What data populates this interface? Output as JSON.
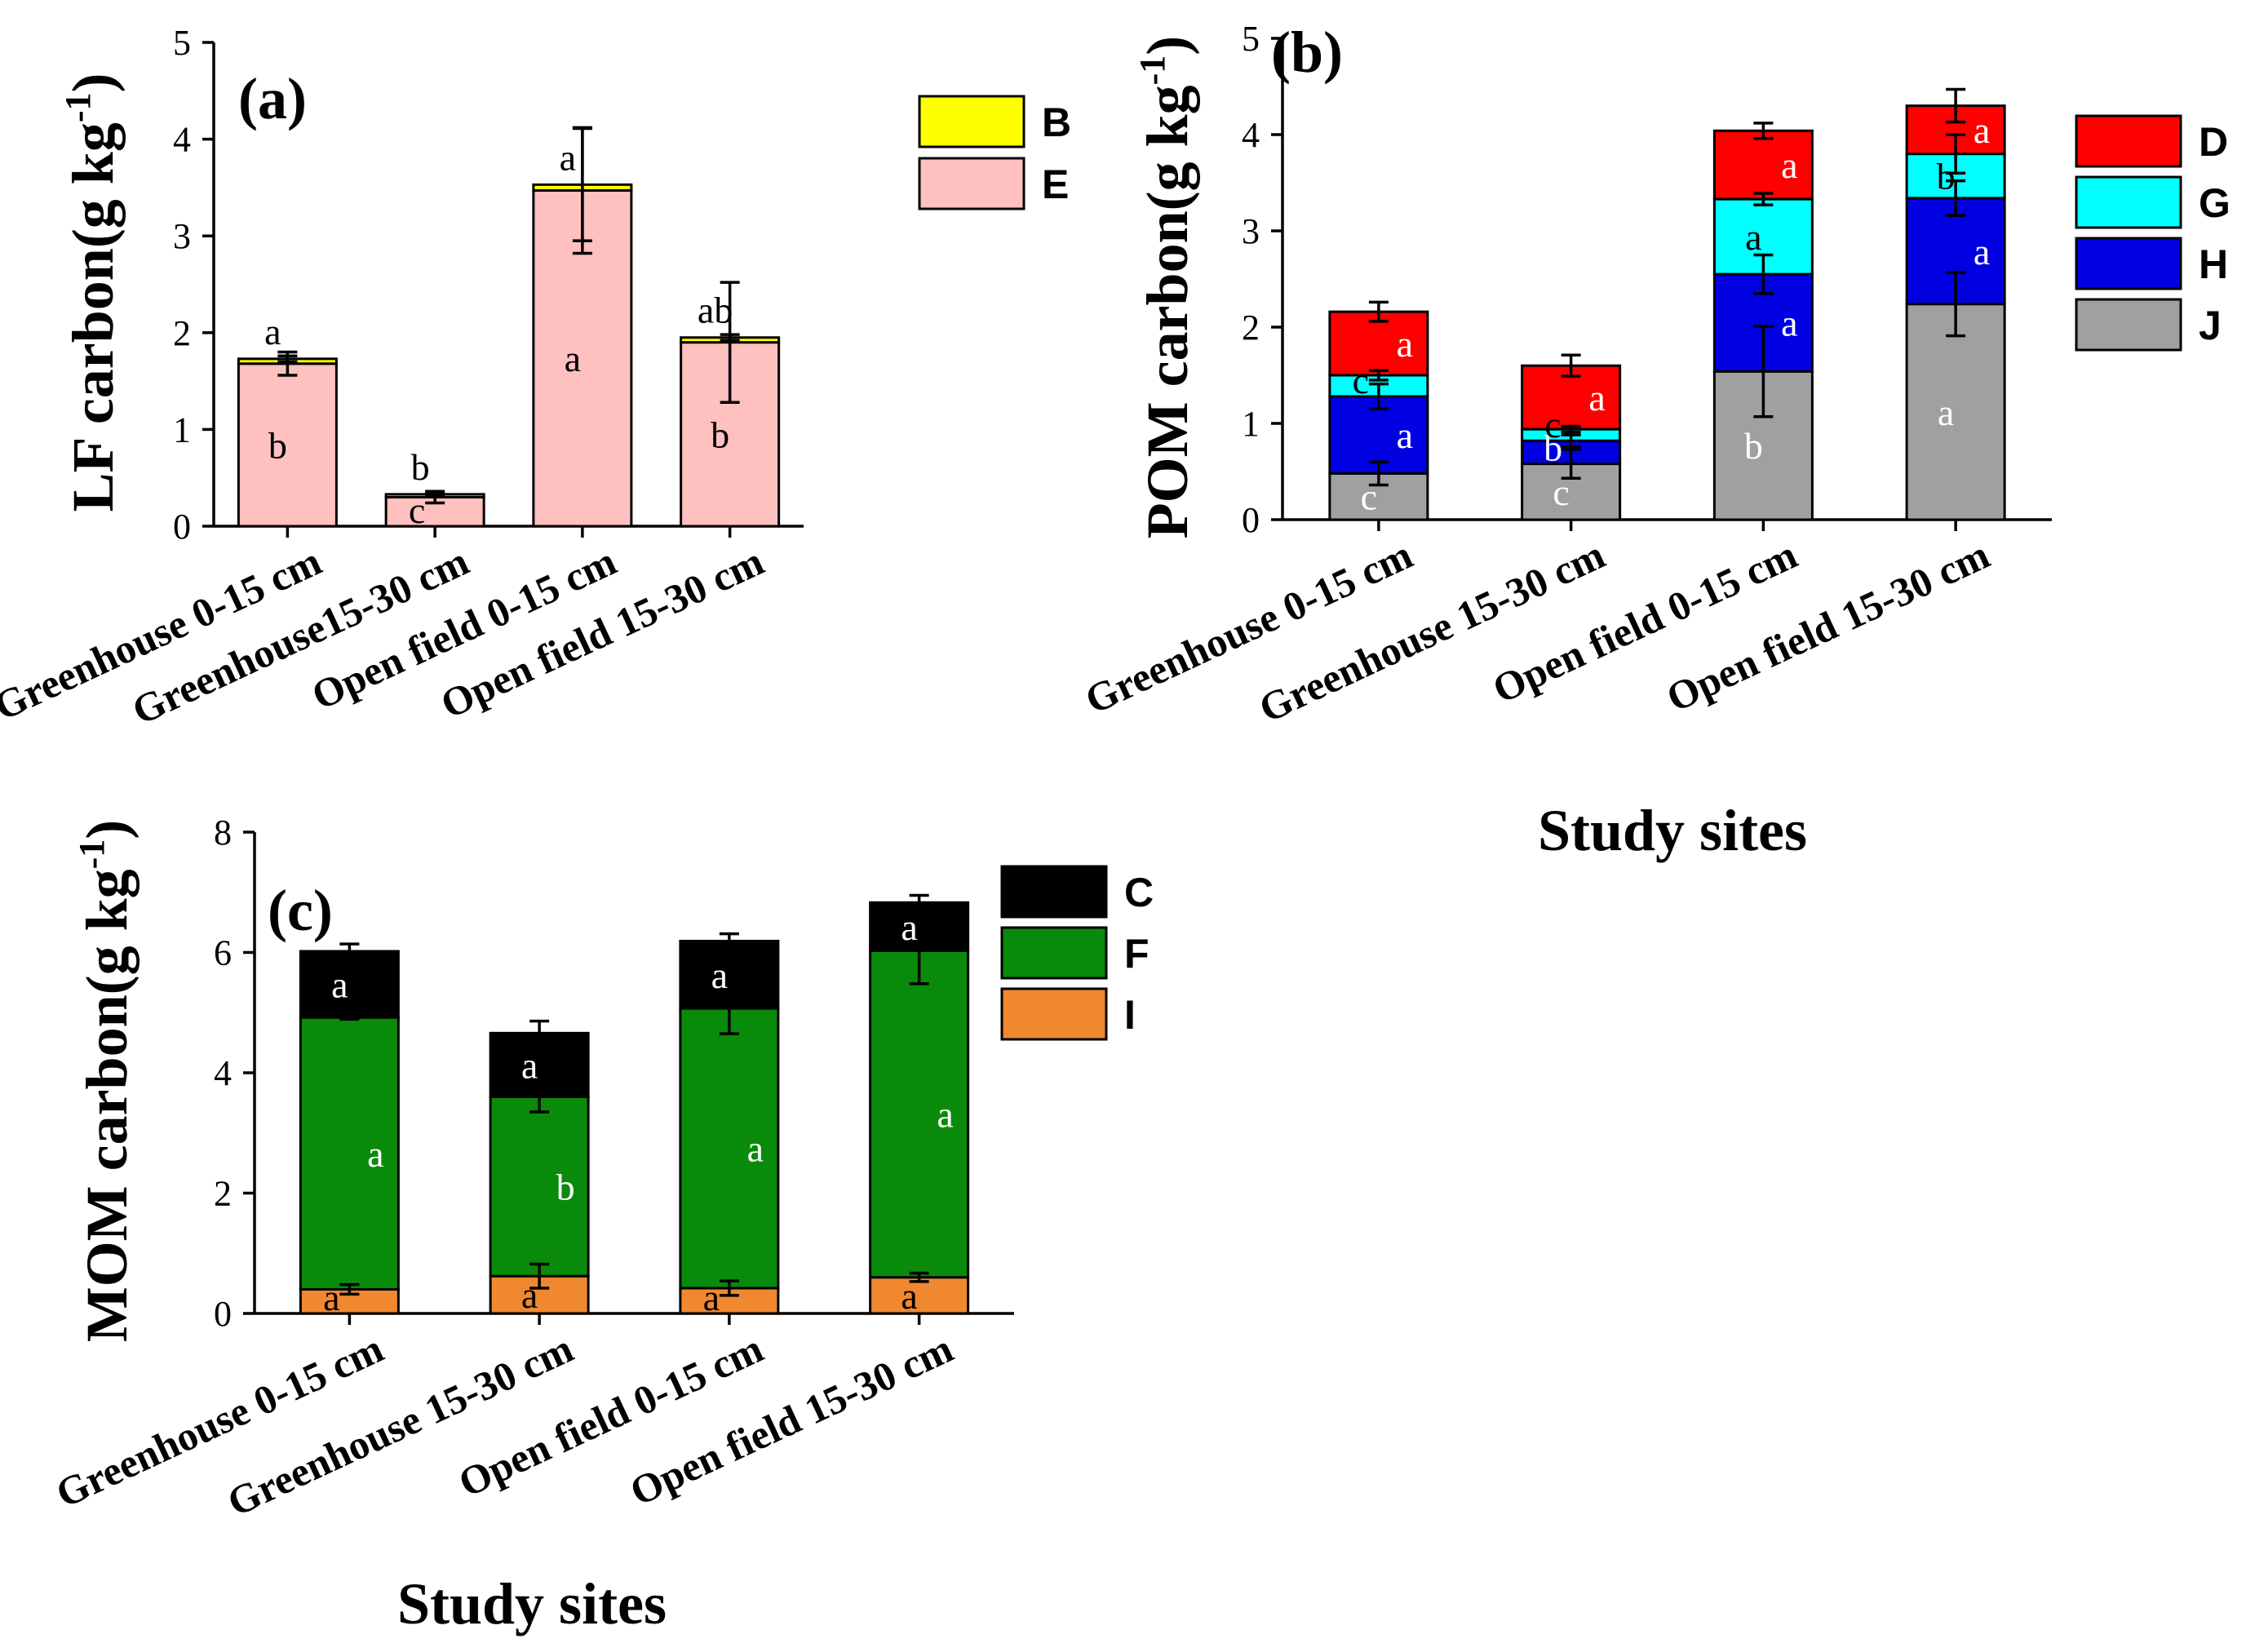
{
  "chart_data": [
    {
      "id": "a",
      "type": "bar",
      "stacked": true,
      "panel_label": "(a)",
      "ylabel_main": "LF carbon(g kg",
      "ylabel_sup": "-1",
      "ylabel_close": ")",
      "xlabel": "",
      "ylim": [
        0,
        5
      ],
      "yticks": [
        "0",
        "1",
        "2",
        "3",
        "4",
        "5"
      ],
      "categories": [
        "Greenhouse 0-15 cm",
        "Greenhouse15-30 cm",
        "Open field 0-15 cm",
        "Open field 15-30 cm"
      ],
      "series": [
        {
          "name": "E",
          "color": "#ffc0c0",
          "values": [
            1.68,
            0.3,
            3.47,
            1.9
          ],
          "errors": [
            0.12,
            0.06,
            0.65,
            0.62
          ],
          "labels": [
            "b",
            "c",
            "a",
            "b"
          ],
          "label_color": "#000000"
        },
        {
          "name": "B",
          "color": "#ffff00",
          "values": [
            0.05,
            0.03,
            0.06,
            0.05
          ],
          "errors": [
            0.03,
            0.02,
            0.58,
            0.03
          ],
          "labels": [
            "a",
            "b",
            "a",
            "ab"
          ],
          "label_color": "#000000"
        }
      ],
      "legend_order": [
        "B",
        "E"
      ],
      "legend": "top-right"
    },
    {
      "id": "b",
      "type": "bar",
      "stacked": true,
      "panel_label": "(b)",
      "ylabel_main": "POM carbon(g kg",
      "ylabel_sup": "-1",
      "ylabel_close": ")",
      "xlabel": "Study sites",
      "ylim": [
        0,
        5
      ],
      "yticks": [
        "0",
        "1",
        "2",
        "3",
        "4",
        "5"
      ],
      "categories": [
        "Greenhouse 0-15 cm",
        "Greenhouse 15-30 cm",
        "Open field 0-15 cm",
        "Open field 15-30 cm"
      ],
      "series": [
        {
          "name": "J",
          "color": "#a0a0a0",
          "values": [
            0.48,
            0.58,
            1.54,
            2.24
          ],
          "errors": [
            0.12,
            0.15,
            0.47,
            0.33
          ],
          "labels": [
            "c",
            "c",
            "b",
            "a"
          ],
          "label_color": "#ffffff"
        },
        {
          "name": "H",
          "color": "#0000e0",
          "values": [
            0.8,
            0.24,
            1.01,
            1.1
          ],
          "errors": [
            0.13,
            0.06,
            0.2,
            0.18
          ],
          "labels": [
            "a",
            "b",
            "a",
            "a"
          ],
          "label_color": "#ffffff"
        },
        {
          "name": "G",
          "color": "#00ffff",
          "values": [
            0.22,
            0.12,
            0.78,
            0.46
          ],
          "errors": [
            0.05,
            0.03,
            0.06,
            0.2
          ],
          "labels": [
            "c",
            "c",
            "a",
            "b"
          ],
          "label_color": "#000000"
        },
        {
          "name": "D",
          "color": "#ff0000",
          "values": [
            0.66,
            0.66,
            0.71,
            0.5
          ],
          "errors": [
            0.1,
            0.11,
            0.08,
            0.17
          ],
          "labels": [
            "a",
            "a",
            "a",
            "a"
          ],
          "label_color": "#ffffff"
        }
      ],
      "legend_order": [
        "D",
        "G",
        "H",
        "J"
      ],
      "legend": "right"
    },
    {
      "id": "c",
      "type": "bar",
      "stacked": true,
      "panel_label": "(c)",
      "ylabel_main": "MOM carbon(g kg",
      "ylabel_sup": "-1",
      "ylabel_close": ")",
      "xlabel": "Study sites",
      "ylim": [
        0,
        8
      ],
      "yticks": [
        "0",
        "2",
        "4",
        "6",
        "8"
      ],
      "categories": [
        "Greenhouse 0-15 cm",
        "Greenhouse  15-30 cm",
        "Open field 0-15 cm",
        "Open field 15-30 cm"
      ],
      "series": [
        {
          "name": "I",
          "color": "#f08830",
          "values": [
            0.4,
            0.62,
            0.42,
            0.6
          ],
          "errors": [
            0.08,
            0.2,
            0.12,
            0.07
          ],
          "labels": [
            "a",
            "a",
            "a",
            "a"
          ],
          "label_color": "#000000"
        },
        {
          "name": "F",
          "color": "#0a8a0a",
          "values": [
            4.52,
            2.98,
            4.65,
            5.43
          ],
          "errors": [
            0.03,
            0.25,
            0.42,
            0.55
          ],
          "labels": [
            "a",
            "b",
            "a",
            "a"
          ],
          "label_color": "#ffffff"
        },
        {
          "name": "C",
          "color": "#000000",
          "values": [
            1.1,
            1.06,
            1.12,
            0.8
          ],
          "errors": [
            0.12,
            0.2,
            0.12,
            0.12
          ],
          "labels": [
            "a",
            "a",
            "a",
            "a"
          ],
          "label_color": "#ffffff"
        }
      ],
      "legend_order": [
        "C",
        "F",
        "I"
      ],
      "legend": "top-right"
    }
  ]
}
